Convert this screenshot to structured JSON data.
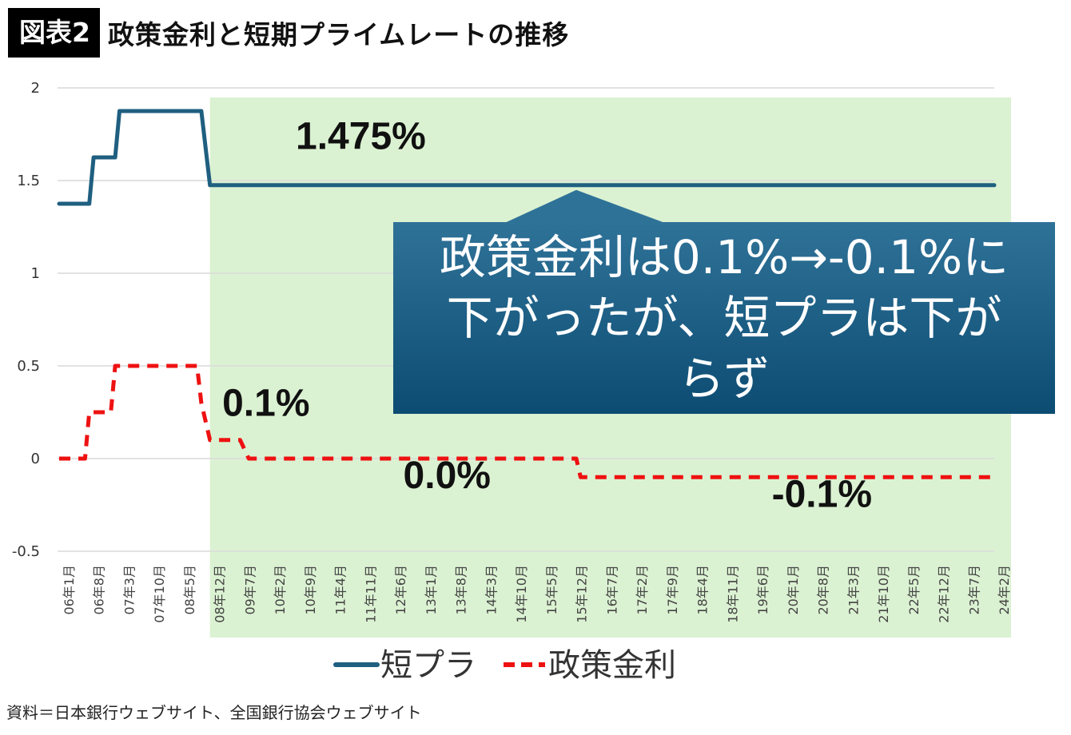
{
  "header": {
    "badge": "図表2",
    "title": "政策金利と短期プライムレートの推移"
  },
  "source": "資料＝日本銀行ウェブサイト、全国銀行協会ウェブサイト",
  "colors": {
    "short_prime": "#1f5f80",
    "policy_rate": "#ee1111",
    "highlight": "#dbf2d2",
    "callout_top": "#2f7298",
    "callout_bottom": "#0d4c72"
  },
  "chart_data": {
    "type": "line",
    "ylim": [
      -0.5,
      2
    ],
    "yticks": [
      "2",
      "1.5",
      "1",
      "0.5",
      "0",
      "-0.5"
    ],
    "x_labels": [
      "06年1月",
      "06年8月",
      "07年3月",
      "07年10月",
      "08年5月",
      "08年12月",
      "09年7月",
      "10年2月",
      "10年9月",
      "11年4月",
      "11年11月",
      "12年6月",
      "13年1月",
      "13年8月",
      "14年3月",
      "14年10月",
      "15年5月",
      "15年12月",
      "16年7月",
      "17年2月",
      "17年9月",
      "18年4月",
      "18年11月",
      "19年6月",
      "20年1月",
      "20年8月",
      "21年3月",
      "21年10月",
      "22年5月",
      "22年12月",
      "23年7月",
      "24年2月"
    ],
    "grid": "horizontal",
    "legend_position": "bottom",
    "series": [
      {
        "name": "短プラ",
        "style": "solid",
        "points": [
          [
            "2006-01",
            1.375
          ],
          [
            "2006-08",
            1.375
          ],
          [
            "2006-09",
            1.625
          ],
          [
            "2007-02",
            1.625
          ],
          [
            "2007-03",
            1.875
          ],
          [
            "2008-10",
            1.875
          ],
          [
            "2008-11",
            1.675
          ],
          [
            "2008-12",
            1.475
          ],
          [
            "2024-02",
            1.475
          ]
        ]
      },
      {
        "name": "政策金利",
        "style": "dashed",
        "points": [
          [
            "2006-01",
            0
          ],
          [
            "2006-07",
            0
          ],
          [
            "2006-08",
            0.25
          ],
          [
            "2007-01",
            0.25
          ],
          [
            "2007-02",
            0.5
          ],
          [
            "2008-09",
            0.5
          ],
          [
            "2008-10",
            0.3
          ],
          [
            "2008-12",
            0.1
          ],
          [
            "2009-07",
            0.1
          ],
          [
            "2009-09",
            0
          ],
          [
            "2016-01",
            0
          ],
          [
            "2016-02",
            -0.1
          ],
          [
            "2024-02",
            -0.1
          ]
        ]
      }
    ],
    "highlight_from": "2008-12",
    "annotations": [
      {
        "text": "1.475%",
        "x": "2011-11",
        "y": 1.67
      },
      {
        "text": "0.1%",
        "x": "2010-01",
        "y": 0.23
      },
      {
        "text": "0.0%",
        "x": "2013-07",
        "y": -0.16
      },
      {
        "text": "-0.1%",
        "x": "2020-10",
        "y": -0.26
      }
    ],
    "callout": {
      "lines": [
        "政策金利は0.1%→-0.1%に",
        "下がったが、短プラは下が",
        "らず"
      ],
      "pointer_to": {
        "x": "2016-01",
        "y": 1.475
      }
    }
  }
}
